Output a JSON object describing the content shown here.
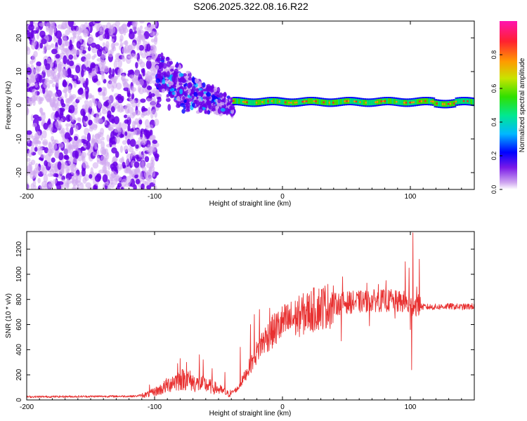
{
  "title": "S206.2025.322.08.16.R22",
  "colors": {
    "snr_line": "#e83030",
    "axis": "#000000",
    "weak_signal": "#7a2be0",
    "strong_signal": "#e8202a"
  },
  "chart_data": [
    {
      "type": "heatmap",
      "name": "spectrogram",
      "xlabel": "Height of straight line (km)",
      "ylabel": "Frequency (Hz)",
      "xlim": [
        -200,
        150
      ],
      "ylim": [
        -25,
        25
      ],
      "x_ticks": [
        -200,
        -100,
        0,
        100
      ],
      "x_tick_labels": [
        "-200",
        "-100",
        "0",
        "100"
      ],
      "y_ticks": [
        -20,
        -10,
        0,
        10,
        20
      ],
      "y_tick_labels": [
        "-20",
        "-10",
        "0",
        "10",
        "20"
      ],
      "colorbar": {
        "label": "Normalized spectral amplitude",
        "range": [
          0,
          1
        ],
        "ticks": [
          0,
          0.2,
          0.4,
          0.6,
          0.8
        ],
        "tick_labels": [
          "0.0",
          "0.2",
          "0.4",
          "0.6",
          "0.8"
        ],
        "colormap": [
          "#d0a8f0",
          "#6a00e8",
          "#0000ff",
          "#00b4ff",
          "#00e070",
          "#40e000",
          "#d8e000",
          "#ff9000",
          "#ff2020",
          "#ff1aa8"
        ]
      },
      "features": [
        {
          "region": "noise",
          "x_range": [
            -200,
            -98
          ],
          "freq_range": [
            -25,
            25
          ],
          "amplitude": "0.1-0.2"
        },
        {
          "region": "transition",
          "x_range": [
            -98,
            -38
          ],
          "freq_start": 8,
          "freq_end": -1,
          "amplitude": "0.2-0.35"
        },
        {
          "region": "carrier",
          "x_range": [
            -38,
            150
          ],
          "freq": 1.0,
          "amplitude": "0.5-1.0"
        }
      ]
    },
    {
      "type": "line",
      "name": "snr",
      "xlabel": "Height of straight line (km)",
      "ylabel": "SNR (10 * v/v)",
      "xlim": [
        -200,
        150
      ],
      "ylim": [
        0,
        1340
      ],
      "x_ticks": [
        -200,
        -100,
        0,
        100
      ],
      "x_tick_labels": [
        "-200",
        "-100",
        "0",
        "100"
      ],
      "y_ticks": [
        0,
        200,
        400,
        600,
        800,
        1000,
        1200
      ],
      "y_tick_labels": [
        "0",
        "200",
        "400",
        "600",
        "800",
        "1000",
        "1200"
      ],
      "series": [
        {
          "name": "SNR",
          "x": [
            -200,
            -150,
            -115,
            -105,
            -95,
            -85,
            -75,
            -68,
            -60,
            -50,
            -42,
            -35,
            -30,
            -25,
            -20,
            -15,
            -10,
            -5,
            0,
            10,
            20,
            30,
            40,
            50,
            60,
            70,
            80,
            90,
            95,
            100,
            103,
            110,
            120,
            130,
            140,
            150
          ],
          "y": [
            25,
            28,
            30,
            45,
            85,
            150,
            170,
            130,
            120,
            85,
            45,
            90,
            180,
            280,
            380,
            470,
            520,
            570,
            610,
            650,
            700,
            740,
            760,
            775,
            780,
            790,
            790,
            780,
            780,
            740,
            760,
            740,
            740,
            745,
            740,
            745
          ],
          "spikes": [
            {
              "x": -104,
              "y": 120
            },
            {
              "x": -82,
              "y": 290
            },
            {
              "x": -80,
              "y": 330
            },
            {
              "x": -75,
              "y": 300
            },
            {
              "x": -65,
              "y": 360
            },
            {
              "x": -62,
              "y": 320
            },
            {
              "x": -55,
              "y": 250
            },
            {
              "x": -45,
              "y": 220
            },
            {
              "x": -33,
              "y": 420
            },
            {
              "x": -25,
              "y": 600
            },
            {
              "x": -22,
              "y": 680
            },
            {
              "x": -18,
              "y": 720
            },
            {
              "x": -10,
              "y": 730
            },
            {
              "x": 20,
              "y": 780
            },
            {
              "x": 47,
              "y": 980
            },
            {
              "x": 46,
              "y": 470
            },
            {
              "x": 66,
              "y": 930
            },
            {
              "x": 68,
              "y": 590
            },
            {
              "x": 75,
              "y": 920
            },
            {
              "x": 81,
              "y": 950
            },
            {
              "x": 85,
              "y": 880
            },
            {
              "x": 88,
              "y": 650
            },
            {
              "x": 96,
              "y": 1100
            },
            {
              "x": 99,
              "y": 1050
            },
            {
              "x": 100,
              "y": 560
            },
            {
              "x": 101,
              "y": 240
            },
            {
              "x": 102,
              "y": 1330
            },
            {
              "x": 105,
              "y": 900
            },
            {
              "x": 107,
              "y": 1120
            }
          ]
        }
      ]
    }
  ]
}
